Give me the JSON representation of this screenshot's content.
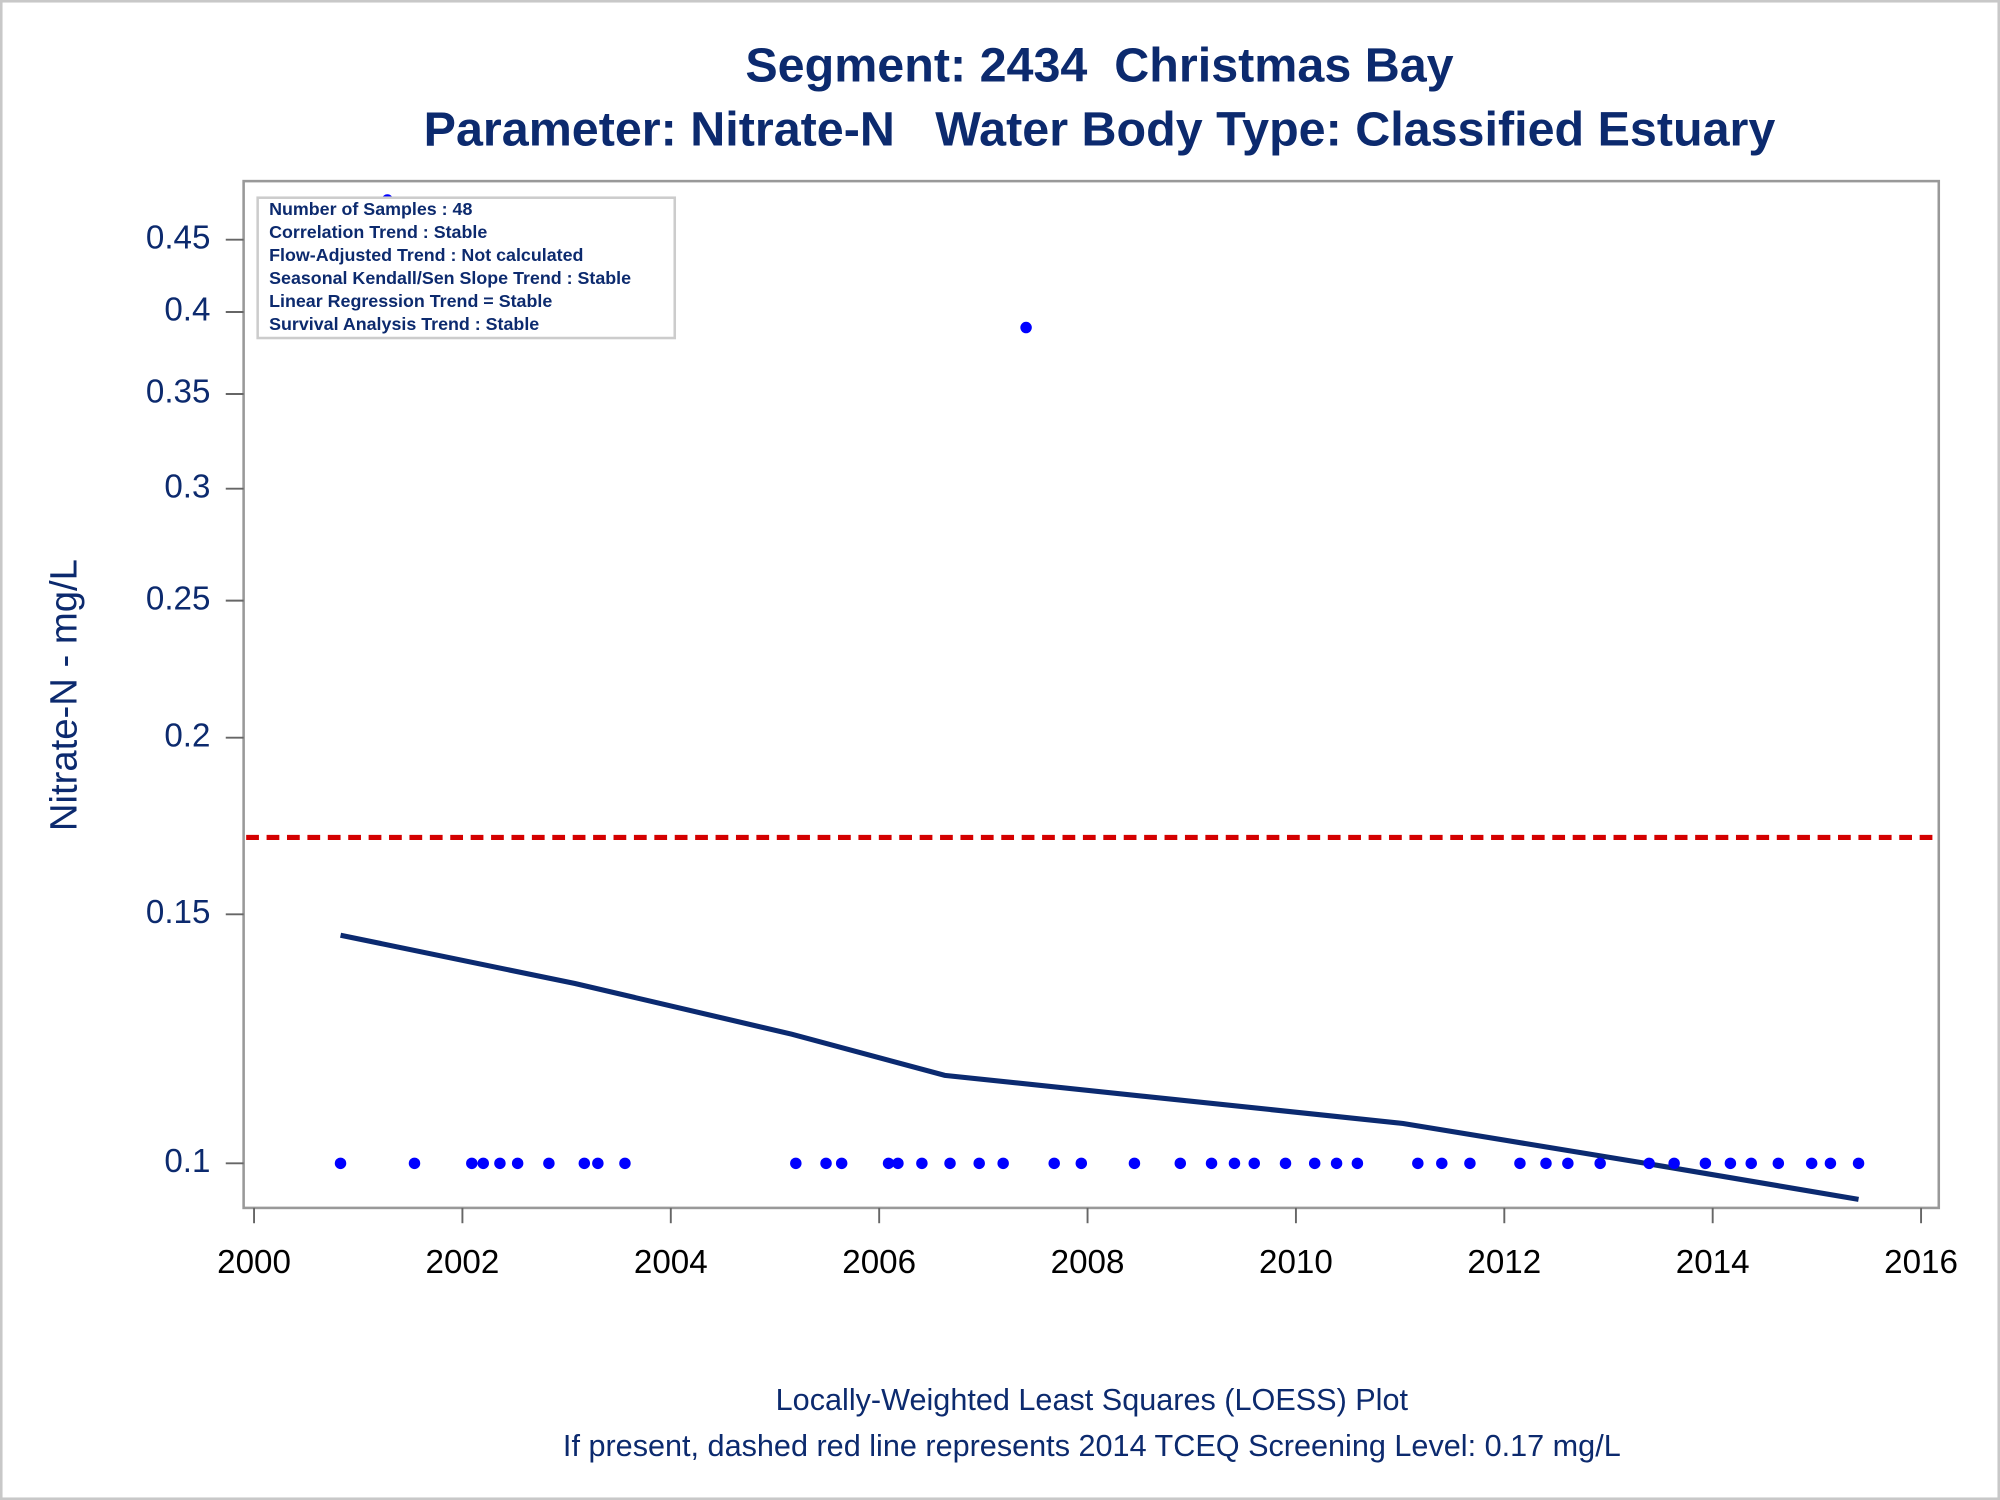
{
  "chart_data": {
    "type": "scatter",
    "title": "Segment: 2434  Christmas Bay",
    "subtitle": "Parameter: Nitrate-N   Water Body Type: Classified Estuary",
    "ylabel": "Nitrate-N - mg/L",
    "footnotes": [
      "Locally-Weighted Least Squares (LOESS) Plot",
      "If present, dashed red line represents 2014 TCEQ Screening Level: 0.17 mg/L"
    ],
    "stats": [
      "Number of Samples : 48",
      "Correlation Trend : Stable",
      "Flow-Adjusted Trend : Not calculated",
      "Seasonal Kendall/Sen Slope Trend : Stable",
      "Linear Regression Trend = Stable",
      "Survival Analysis Trend : Stable"
    ],
    "log_y": true,
    "xlim": [
      1999.9,
      2016.17
    ],
    "ylim": [
      0.093,
      0.495
    ],
    "xticks": [
      2000,
      2002,
      2004,
      2006,
      2008,
      2010,
      2012,
      2014,
      2016
    ],
    "yticks": [
      0.1,
      0.15,
      0.2,
      0.25,
      0.3,
      0.35,
      0.4,
      0.45
    ],
    "points": {
      "color": "#0000ff",
      "x": [
        2000.83,
        2001.28,
        2001.54,
        2002.09,
        2002.2,
        2002.36,
        2002.53,
        2002.83,
        2003.17,
        2003.3,
        2003.56,
        2005.2,
        2005.49,
        2005.64,
        2006.09,
        2006.18,
        2006.41,
        2006.68,
        2006.96,
        2007.19,
        2007.41,
        2007.68,
        2007.94,
        2008.45,
        2008.89,
        2009.19,
        2009.41,
        2009.6,
        2009.9,
        2010.18,
        2010.39,
        2010.59,
        2011.17,
        2011.4,
        2011.67,
        2012.15,
        2012.4,
        2012.61,
        2012.92,
        2013.39,
        2013.63,
        2013.93,
        2014.17,
        2014.37,
        2014.63,
        2014.95,
        2015.13,
        2015.4
      ],
      "values": [
        0.1,
        0.48,
        0.1,
        0.1,
        0.1,
        0.1,
        0.1,
        0.1,
        0.1,
        0.1,
        0.1,
        0.1,
        0.1,
        0.1,
        0.1,
        0.1,
        0.1,
        0.1,
        0.1,
        0.1,
        0.39,
        0.1,
        0.1,
        0.1,
        0.1,
        0.1,
        0.1,
        0.1,
        0.1,
        0.1,
        0.1,
        0.1,
        0.1,
        0.1,
        0.1,
        0.1,
        0.1,
        0.1,
        0.1,
        0.1,
        0.1,
        0.1,
        0.1,
        0.1,
        0.1,
        0.1,
        0.1,
        0.1
      ]
    },
    "loess": {
      "color": "#0b2a70",
      "x": [
        2000.83,
        2003.08,
        2005.16,
        2006.63,
        2011.03,
        2013.36,
        2015.4
      ],
      "values": [
        0.145,
        0.134,
        0.1234,
        0.1154,
        0.1067,
        0.1,
        0.0943
      ]
    },
    "reference_line": {
      "value": 0.17,
      "color": "#d40000"
    }
  }
}
